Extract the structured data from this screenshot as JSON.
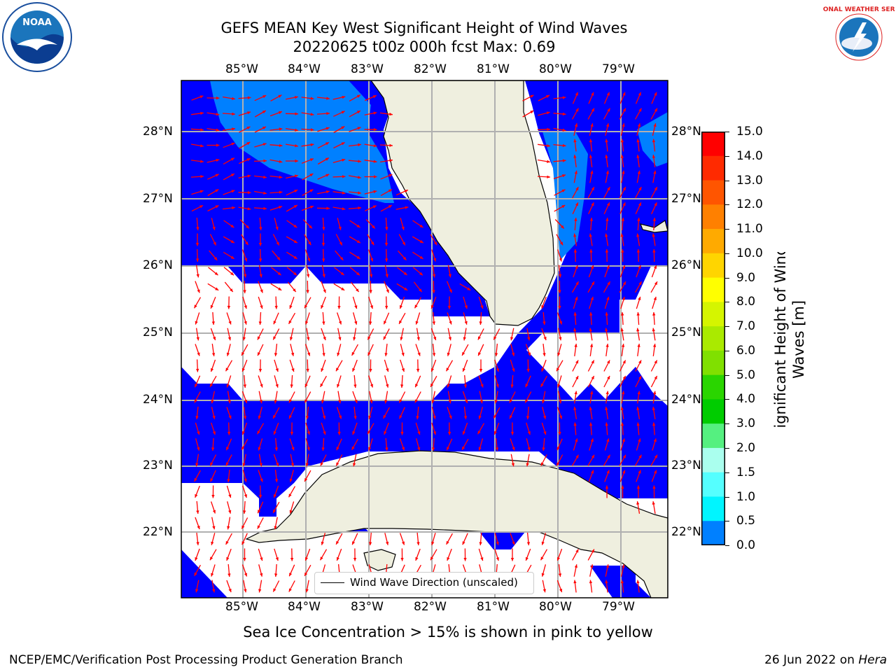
{
  "header": {
    "title_line1": "GEFS MEAN Key West Significant Height of Wind Waves",
    "title_line2": "20220625 t00z 000h fcst   Max: 0.69"
  },
  "logos": {
    "left": "NOAA",
    "right": "NATIONAL WEATHER SERVICE"
  },
  "axes": {
    "lon_labels": [
      "85°W",
      "84°W",
      "83°W",
      "82°W",
      "81°W",
      "80°W",
      "79°W"
    ],
    "lat_labels": [
      "28°N",
      "27°N",
      "26°N",
      "25°N",
      "24°N",
      "23°N",
      "22°N"
    ]
  },
  "legend": {
    "label": "Wind Wave Direction (unscaled)"
  },
  "colorbar": {
    "title": "Significant Height of Wind Waves [m]",
    "ticks": [
      "15.0",
      "14.0",
      "13.0",
      "12.0",
      "11.0",
      "10.0",
      "9.0",
      "8.0",
      "7.0",
      "6.0",
      "5.0",
      "4.0",
      "3.0",
      "2.0",
      "1.5",
      "1.0",
      "0.5",
      "0.0"
    ],
    "colors": [
      "#ff0000",
      "#ff2a00",
      "#ff5500",
      "#ff8000",
      "#ffaa00",
      "#ffd500",
      "#ffff00",
      "#d5f500",
      "#aaea00",
      "#80e000",
      "#2ad500",
      "#00cc00",
      "#55f080",
      "#aaffee",
      "#55ffff",
      "#00f5ff",
      "#0080ff",
      "#0000ff"
    ]
  },
  "map": {
    "land_color": "#efefdf",
    "wave_colors": {
      "low": "#0000ff",
      "mid": "#0080ff"
    },
    "arrow_color": "#ff0000",
    "max_value": 0.69
  },
  "notes": {
    "sea_ice": "Sea Ice Concentration > 15% is shown in pink to yellow"
  },
  "footer": {
    "left": "NCEP/EMC/Verification Post Processing Product Generation Branch",
    "right_date": "26 Jun 2022 on ",
    "right_host": "Hera"
  }
}
